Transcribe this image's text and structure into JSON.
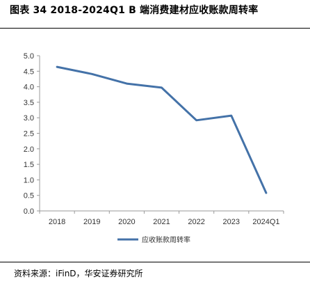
{
  "figure": {
    "title": "图表 34 2018-2024Q1 B 端消费建材应收账款周转率",
    "source": "资料来源：iFinD，华安证券研究所"
  },
  "chart_data": {
    "type": "line",
    "title": "",
    "xlabel": "",
    "ylabel": "",
    "categories": [
      "2018",
      "2019",
      "2020",
      "2021",
      "2022",
      "2023",
      "2024Q1"
    ],
    "series": [
      {
        "name": "应收账款周转率",
        "values": [
          4.64,
          4.41,
          4.1,
          3.97,
          2.92,
          3.07,
          0.58
        ]
      }
    ],
    "ylim": [
      0,
      5
    ],
    "yticks": [
      "0.0",
      "0.5",
      "1.0",
      "1.5",
      "2.0",
      "2.5",
      "3.0",
      "3.5",
      "4.0",
      "4.5",
      "5.0"
    ],
    "grid": false,
    "legend": "bottom",
    "line_color": "#4472a8"
  }
}
